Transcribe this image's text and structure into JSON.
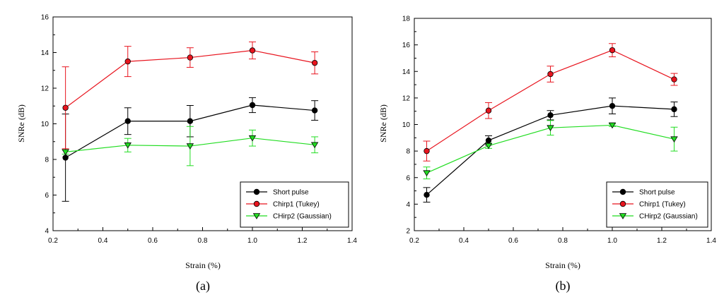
{
  "chart_data": [
    {
      "type": "line",
      "panel_label": "(a)",
      "xlabel": "Strain (%)",
      "ylabel": "SNRe  (dB)",
      "xlim": [
        0.2,
        1.4
      ],
      "ylim": [
        4,
        16
      ],
      "xticks": [
        "0.2",
        "0.4",
        "0.6",
        "0.8",
        "1.0",
        "1.2",
        "1.4"
      ],
      "yticks": [
        "4",
        "6",
        "8",
        "10",
        "12",
        "14",
        "16"
      ],
      "grid": false,
      "legend_position": "bottom-right",
      "x": [
        0.25,
        0.5,
        0.75,
        1.0,
        1.25
      ],
      "series": [
        {
          "name": "Short pulse",
          "color": "#000000",
          "marker": "circle",
          "values": [
            8.1,
            10.15,
            10.15,
            11.05,
            10.75
          ],
          "errors": [
            2.45,
            0.75,
            0.88,
            0.42,
            0.55
          ]
        },
        {
          "name": "Chirp1 (Tukey)",
          "color": "#e8141e",
          "marker": "circle",
          "values": [
            10.9,
            13.5,
            13.72,
            14.12,
            13.42
          ],
          "errors": [
            2.3,
            0.85,
            0.55,
            0.48,
            0.62
          ]
        },
        {
          "name": "CHirp2 (Gaussian)",
          "color": "#22dd22",
          "marker": "triangle-down",
          "values": [
            8.42,
            8.8,
            8.75,
            9.2,
            8.82
          ],
          "errors": [
            0.12,
            0.38,
            1.1,
            0.45,
            0.45
          ]
        }
      ]
    },
    {
      "type": "line",
      "panel_label": "(b)",
      "xlabel": "Strain (%)",
      "ylabel": "SNRe  (dB)",
      "xlim": [
        0.2,
        1.4
      ],
      "ylim": [
        2,
        18
      ],
      "xticks": [
        "0.2",
        "0.4",
        "0.6",
        "0.8",
        "1.0",
        "1.2",
        "1.4"
      ],
      "yticks": [
        "2",
        "4",
        "6",
        "8",
        "10",
        "12",
        "14",
        "16",
        "18"
      ],
      "grid": false,
      "legend_position": "bottom-right",
      "x": [
        0.25,
        0.5,
        0.75,
        1.0,
        1.25
      ],
      "series": [
        {
          "name": "Short pulse",
          "color": "#000000",
          "marker": "circle",
          "values": [
            4.7,
            8.8,
            10.7,
            11.4,
            11.15
          ],
          "errors": [
            0.55,
            0.35,
            0.35,
            0.6,
            0.55
          ]
        },
        {
          "name": "Chirp1 (Tukey)",
          "color": "#e8141e",
          "marker": "circle",
          "values": [
            8.0,
            11.05,
            13.8,
            15.6,
            13.4
          ],
          "errors": [
            0.75,
            0.6,
            0.6,
            0.5,
            0.45
          ]
        },
        {
          "name": "CHirp2 (Gaussian)",
          "color": "#22dd22",
          "marker": "triangle-down",
          "values": [
            6.35,
            8.4,
            9.75,
            9.95,
            8.9
          ],
          "errors": [
            0.45,
            0.2,
            0.55,
            0.1,
            0.9
          ]
        }
      ]
    }
  ]
}
